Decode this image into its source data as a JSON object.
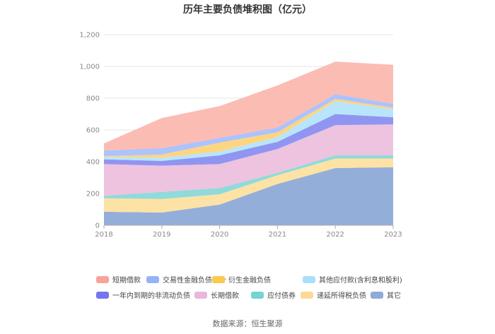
{
  "chart_data": {
    "type": "area",
    "stacked": true,
    "title": "历年主要负债堆积图（亿元）",
    "source": "数据来源：恒生聚源",
    "x": [
      "2018",
      "2019",
      "2020",
      "2021",
      "2022",
      "2023"
    ],
    "ylim": [
      0,
      1200
    ],
    "yticks": [
      "0",
      "200",
      "400",
      "600",
      "800",
      "1,000",
      "1,200"
    ],
    "ytick_values": [
      0,
      200,
      400,
      600,
      800,
      1000,
      1200
    ],
    "grid": true,
    "legend_position": "bottom",
    "series": [
      {
        "name": "其它",
        "color": "#8eaad8",
        "values": [
          85,
          80,
          130,
          260,
          360,
          365
        ]
      },
      {
        "name": "递延所得税负债",
        "color": "#fde0a0",
        "values": [
          85,
          85,
          65,
          55,
          60,
          55
        ]
      },
      {
        "name": "应付债券",
        "color": "#8ad8d8",
        "values": [
          15,
          45,
          40,
          15,
          20,
          20
        ]
      },
      {
        "name": "长期借款",
        "color": "#ecc0de",
        "values": [
          200,
          165,
          150,
          150,
          190,
          195
        ]
      },
      {
        "name": "一年内到期的非流动负债",
        "color": "#8a8ff0",
        "values": [
          30,
          30,
          55,
          45,
          70,
          45
        ]
      },
      {
        "name": "其他应付款(含利息和股利)",
        "color": "#b4e4fc",
        "values": [
          15,
          20,
          25,
          30,
          80,
          50
        ]
      },
      {
        "name": "衍生金融负债",
        "color": "#fdd37a",
        "values": [
          5,
          20,
          55,
          30,
          15,
          10
        ]
      },
      {
        "name": "交易性金融负债合计",
        "color": "#a8c0fc",
        "values": [
          35,
          40,
          30,
          30,
          30,
          25
        ]
      },
      {
        "name": "短期借款",
        "color": "#fbb8b0",
        "values": [
          45,
          190,
          200,
          265,
          205,
          245
        ]
      }
    ],
    "legend_order": [
      "短期借款",
      "交易性金融负债合计",
      "衍生金融负债",
      "其他应付款(含利息和股利)",
      "一年内到期的非流动负债",
      "长期借款",
      "应付债券",
      "递延所得税负债",
      "其它"
    ],
    "legend_colors": [
      "#f7a399",
      "#96b3f8",
      "#fcc94e",
      "#a9dffb",
      "#7476eb",
      "#e8b7dc",
      "#74d3d3",
      "#fdd996",
      "#8eaad8"
    ]
  }
}
